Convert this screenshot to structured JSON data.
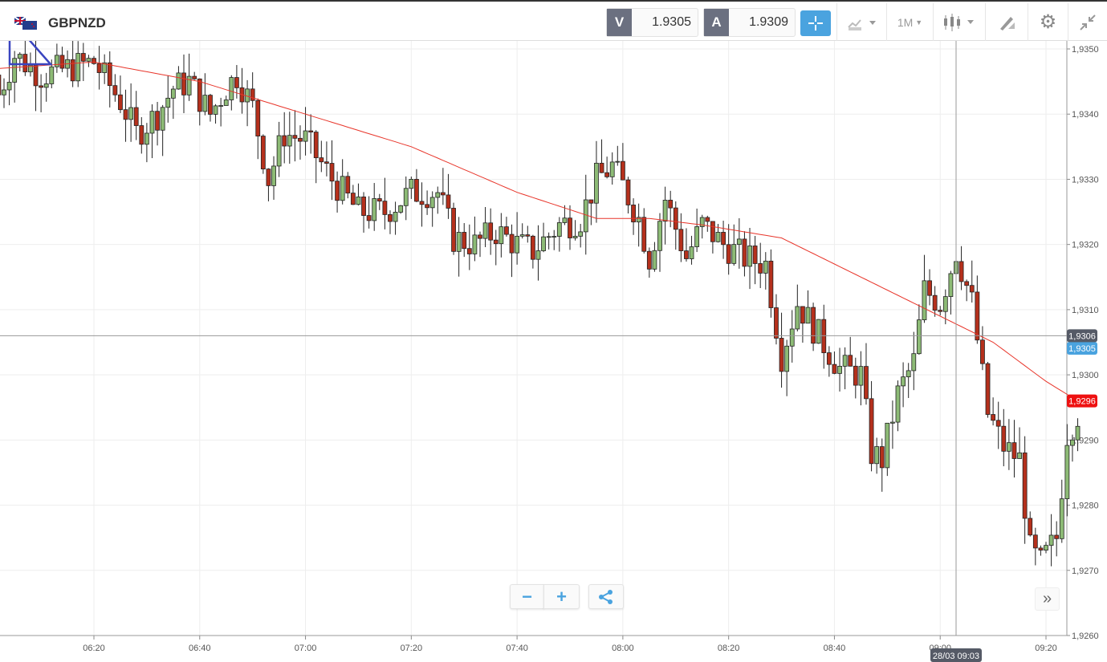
{
  "header": {
    "symbol": "GBPNZD",
    "flag_icon": "gb-nz-flag-icon",
    "sell_label": "V",
    "sell_price": "1.9305",
    "buy_label": "A",
    "buy_price": "1.9309",
    "timeframe": "1M"
  },
  "controls": {
    "zoom_out": "−",
    "zoom_in": "+",
    "more": "»"
  },
  "colors": {
    "up": "#8dbb76",
    "down": "#b5301c",
    "ma": "#e8352a",
    "accent": "#4aa3df",
    "last_price_bg": "#ee1111"
  },
  "chart_data": {
    "type": "candlestick",
    "interval_minutes": 1,
    "y_ticks": [
      "1,9260",
      "1,9270",
      "1,9280",
      "1,9290",
      "1,9300",
      "1,9310",
      "1,9320",
      "1,9330",
      "1,9340",
      "1,9350"
    ],
    "ylim": [
      1.926,
      1.935
    ],
    "x_ticks": [
      "06:20",
      "06:40",
      "07:00",
      "07:20",
      "07:40",
      "08:00",
      "08:20",
      "08:40",
      "09:00",
      "09:20"
    ],
    "time_range": [
      "06:02",
      "09:26"
    ],
    "close_anchors": [
      [
        "06:02",
        1.9343
      ],
      [
        "06:05",
        1.9349
      ],
      [
        "06:10",
        1.9346
      ],
      [
        "06:15",
        1.9347
      ],
      [
        "06:20",
        1.9348
      ],
      [
        "06:25",
        1.9342
      ],
      [
        "06:28",
        1.9337
      ],
      [
        "06:32",
        1.934
      ],
      [
        "06:35",
        1.9344
      ],
      [
        "06:38",
        1.9345
      ],
      [
        "06:42",
        1.934
      ],
      [
        "06:45",
        1.9344
      ],
      [
        "06:47",
        1.9346
      ],
      [
        "06:50",
        1.9341
      ],
      [
        "06:53",
        1.933
      ],
      [
        "06:56",
        1.9337
      ],
      [
        "07:00",
        1.9336
      ],
      [
        "07:05",
        1.933
      ],
      [
        "07:10",
        1.9325
      ],
      [
        "07:15",
        1.9325
      ],
      [
        "07:20",
        1.9328
      ],
      [
        "07:25",
        1.9328
      ],
      [
        "07:28",
        1.9321
      ],
      [
        "07:32",
        1.932
      ],
      [
        "07:36",
        1.9322
      ],
      [
        "07:40",
        1.932
      ],
      [
        "07:43",
        1.9319
      ],
      [
        "07:48",
        1.9323
      ],
      [
        "07:52",
        1.9324
      ],
      [
        "07:55",
        1.933
      ],
      [
        "07:58",
        1.9332
      ],
      [
        "08:00",
        1.9329
      ],
      [
        "08:03",
        1.9324
      ],
      [
        "08:05",
        1.9318
      ],
      [
        "08:08",
        1.9327
      ],
      [
        "08:12",
        1.9318
      ],
      [
        "08:15",
        1.9323
      ],
      [
        "08:19",
        1.932
      ],
      [
        "08:23",
        1.9318
      ],
      [
        "08:27",
        1.9317
      ],
      [
        "08:30",
        1.9303
      ],
      [
        "08:33",
        1.9311
      ],
      [
        "08:37",
        1.9306
      ],
      [
        "08:41",
        1.9301
      ],
      [
        "08:45",
        1.93
      ],
      [
        "08:47",
        1.9288
      ],
      [
        "08:49",
        1.9287
      ],
      [
        "08:52",
        1.9297
      ],
      [
        "08:55",
        1.9302
      ],
      [
        "08:57",
        1.9313
      ],
      [
        "09:00",
        1.9311
      ],
      [
        "09:03",
        1.9319
      ],
      [
        "09:06",
        1.9311
      ],
      [
        "09:09",
        1.9294
      ],
      [
        "09:12",
        1.9289
      ],
      [
        "09:15",
        1.9287
      ],
      [
        "09:17",
        1.9273
      ],
      [
        "09:19",
        1.9271
      ],
      [
        "09:22",
        1.9275
      ],
      [
        "09:24",
        1.9291
      ],
      [
        "09:26",
        1.9294
      ]
    ],
    "moving_average": [
      [
        "06:02",
        1.9347
      ],
      [
        "06:20",
        1.9348
      ],
      [
        "06:40",
        1.9345
      ],
      [
        "07:00",
        1.934
      ],
      [
        "07:20",
        1.9335
      ],
      [
        "07:40",
        1.9328
      ],
      [
        "07:55",
        1.9324
      ],
      [
        "08:05",
        1.9324
      ],
      [
        "08:15",
        1.9323
      ],
      [
        "08:30",
        1.9321
      ],
      [
        "08:40",
        1.9317
      ],
      [
        "08:50",
        1.9313
      ],
      [
        "09:00",
        1.9309
      ],
      [
        "09:10",
        1.9305
      ],
      [
        "09:20",
        1.9299
      ],
      [
        "09:26",
        1.9296
      ]
    ],
    "crosshair": {
      "price": "1,9306",
      "time": "28/03 09:03"
    },
    "sell_marker": "1,9305",
    "last_price": "1,9296"
  }
}
